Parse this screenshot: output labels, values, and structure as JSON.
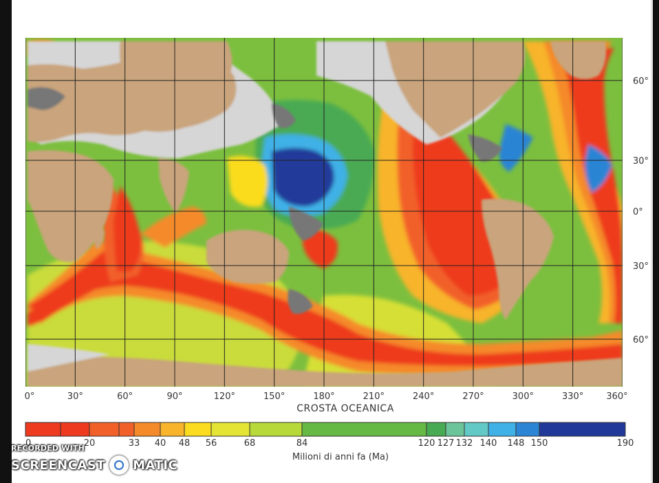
{
  "map": {
    "title": "CROSTA OCEANICA",
    "lon_labels": [
      "0°",
      "30°",
      "60°",
      "90°",
      "120°",
      "150°",
      "180°",
      "210°",
      "240°",
      "270°",
      "300°",
      "330°",
      "360°"
    ],
    "lat_labels": [
      "60°",
      "30°",
      "0°",
      "30°",
      "60°"
    ]
  },
  "legend": {
    "title": "Milioni di anni fa (Ma)",
    "ticks": [
      "0",
      "20",
      "33",
      "40",
      "48",
      "56",
      "68",
      "84",
      "120",
      "127",
      "132",
      "140",
      "148",
      "150",
      "190"
    ],
    "bands": [
      {
        "from": 0,
        "to": 20,
        "color": "#ee3a1e"
      },
      {
        "from": 20,
        "to": 33,
        "color": "#f2602a"
      },
      {
        "from": 33,
        "to": 40,
        "color": "#f58a2a"
      },
      {
        "from": 40,
        "to": 48,
        "color": "#f8b42a"
      },
      {
        "from": 48,
        "to": 56,
        "color": "#fbdc1e"
      },
      {
        "from": 56,
        "to": 68,
        "color": "#e3e434"
      },
      {
        "from": 68,
        "to": 84,
        "color": "#b8d93a"
      },
      {
        "from": 84,
        "to": 120,
        "color": "#66b944"
      },
      {
        "from": 120,
        "to": 127,
        "color": "#48aa52"
      },
      {
        "from": 127,
        "to": 132,
        "color": "#6cc49a"
      },
      {
        "from": 132,
        "to": 140,
        "color": "#63c9c6"
      },
      {
        "from": 140,
        "to": 148,
        "color": "#3fb1e6"
      },
      {
        "from": 148,
        "to": 150,
        "color": "#2c84d4"
      },
      {
        "from": 150,
        "to": 190,
        "color": "#213a9a"
      }
    ]
  },
  "colors": {
    "land": "#c9a47c",
    "shelf": "#d6d6d6",
    "relief": "#666666",
    "grid": "#222222"
  },
  "watermark": {
    "line1": "RECORDED WITH",
    "brand_left": "SCREENCAST",
    "brand_right": "MATIC",
    "logo_icon": "record-circle-icon"
  }
}
